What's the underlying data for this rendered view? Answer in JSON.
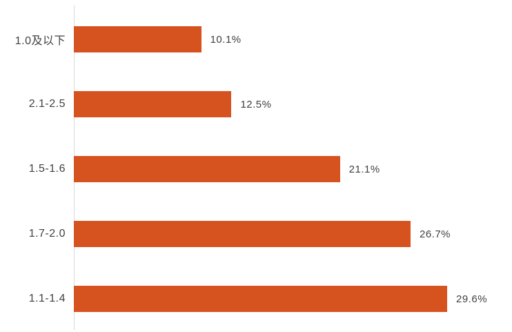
{
  "chart_data": {
    "type": "bar",
    "orientation": "horizontal",
    "title": "",
    "xlabel": "",
    "ylabel": "",
    "categories": [
      "1.0及以下",
      "2.1-2.5",
      "1.5-1.6",
      "1.7-2.0",
      "1.1-1.4"
    ],
    "values": [
      10.1,
      12.5,
      21.1,
      26.7,
      29.6
    ],
    "value_labels": [
      "10.1%",
      "12.5%",
      "21.1%",
      "26.7%",
      "29.6%"
    ],
    "xlim": [
      0,
      32.5
    ],
    "grid": false,
    "legend": false,
    "bar_color": "#d6521f",
    "axis_line_color": "#d9d9d9",
    "label_color": "#404040"
  }
}
